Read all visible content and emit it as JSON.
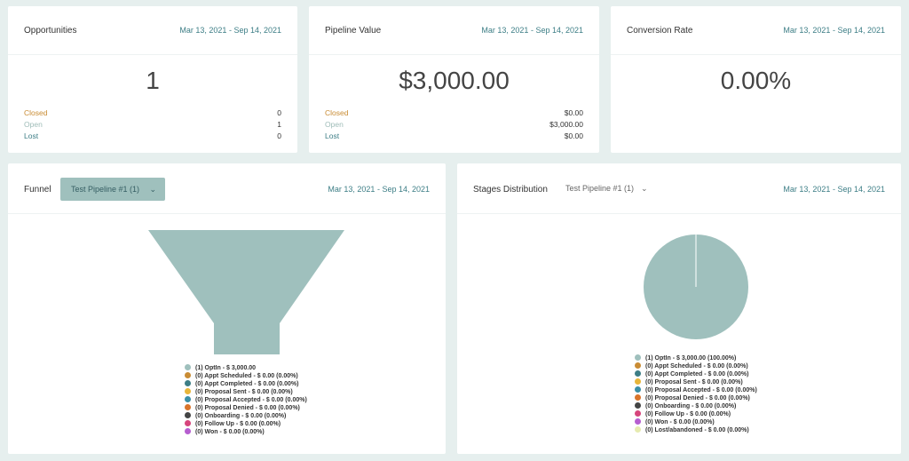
{
  "cards": [
    {
      "title": "Opportunities",
      "date": "Mar 13, 2021 - Sep 14, 2021",
      "value": "1",
      "stats": [
        {
          "label": "Closed",
          "value": "0"
        },
        {
          "label": "Open",
          "value": "1"
        },
        {
          "label": "Lost",
          "value": "0"
        }
      ]
    },
    {
      "title": "Pipeline Value",
      "date": "Mar 13, 2021 - Sep 14, 2021",
      "value": "$3,000.00",
      "stats": [
        {
          "label": "Closed",
          "value": "$0.00"
        },
        {
          "label": "Open",
          "value": "$3,000.00"
        },
        {
          "label": "Lost",
          "value": "$0.00"
        }
      ]
    },
    {
      "title": "Conversion Rate",
      "date": "Mar 13, 2021 - Sep 14, 2021",
      "value": "0.00%"
    }
  ],
  "funnel": {
    "title": "Funnel",
    "pipeline_select": "Test Pipeline #1 (1)",
    "date": "Mar 13, 2021 - Sep 14, 2021",
    "legend": [
      {
        "text": "(1) OptIn - $ 3,000.00",
        "color": "#9fc0bd"
      },
      {
        "text": "(0) Appt Scheduled - $ 0.00 (0.00%)",
        "color": "#c98c34"
      },
      {
        "text": "(0) Appt Completed - $ 0.00 (0.00%)",
        "color": "#3d7e86"
      },
      {
        "text": "(0) Proposal Sent - $ 0.00 (0.00%)",
        "color": "#e8b63a"
      },
      {
        "text": "(0) Proposal Accepted - $ 0.00 (0.00%)",
        "color": "#3a8fa8"
      },
      {
        "text": "(0) Proposal Denied - $ 0.00 (0.00%)",
        "color": "#d9742b"
      },
      {
        "text": "(0) Onboarding - $ 0.00 (0.00%)",
        "color": "#444444"
      },
      {
        "text": "(0) Follow Up - $ 0.00 (0.00%)",
        "color": "#d6457c"
      },
      {
        "text": "(0) Won - $ 0.00 (0.00%)",
        "color": "#b65ed0"
      }
    ]
  },
  "stages": {
    "title": "Stages Distribution",
    "pipeline_select": "Test Pipeline #1 (1)",
    "date": "Mar 13, 2021 - Sep 14, 2021",
    "legend": [
      {
        "text": "(1) OptIn - $ 3,000.00 (100.00%)",
        "color": "#9fc0bd"
      },
      {
        "text": "(0) Appt Scheduled - $ 0.00 (0.00%)",
        "color": "#c98c34"
      },
      {
        "text": "(0) Appt Completed - $ 0.00 (0.00%)",
        "color": "#3d7e86"
      },
      {
        "text": "(0) Proposal Sent - $ 0.00 (0.00%)",
        "color": "#e8b63a"
      },
      {
        "text": "(0) Proposal Accepted - $ 0.00 (0.00%)",
        "color": "#3a8fa8"
      },
      {
        "text": "(0) Proposal Denied - $ 0.00 (0.00%)",
        "color": "#d9742b"
      },
      {
        "text": "(0) Onboarding - $ 0.00 (0.00%)",
        "color": "#444444"
      },
      {
        "text": "(0) Follow Up - $ 0.00 (0.00%)",
        "color": "#d6457c"
      },
      {
        "text": "(0) Won - $ 0.00 (0.00%)",
        "color": "#b65ed0"
      },
      {
        "text": "(0) Lost/abandoned - $ 0.00 (0.00%)",
        "color": "#e6ebb0"
      }
    ]
  }
}
